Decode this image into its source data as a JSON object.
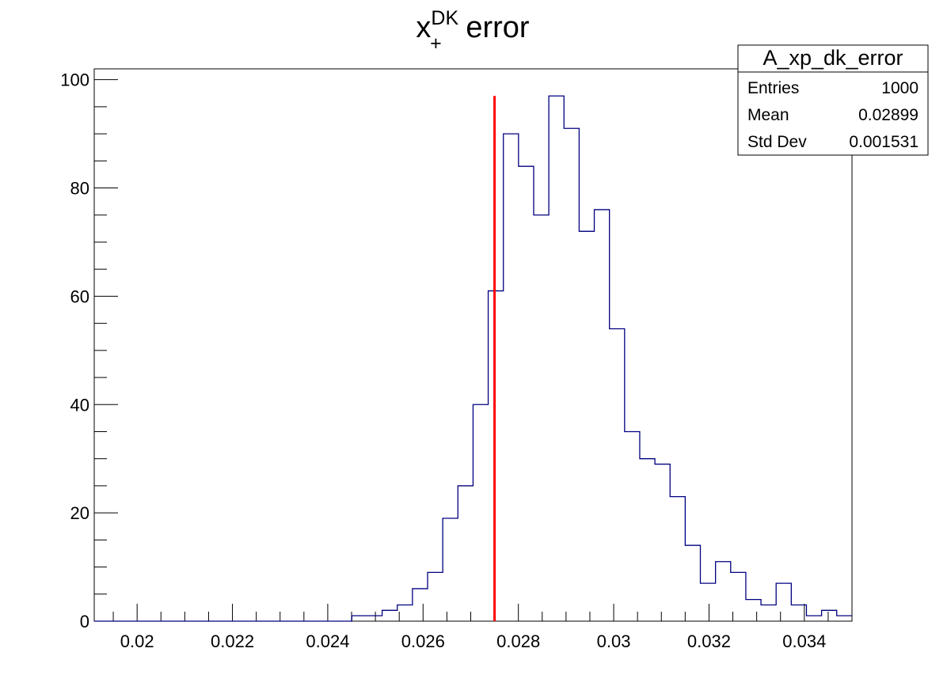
{
  "chart_data": {
    "type": "histogram",
    "title": {
      "base": "x",
      "superscript": "DK",
      "subscript": "+",
      "rest": " error"
    },
    "xlabel": "",
    "ylabel": "",
    "xlim": [
      0.0191,
      0.035
    ],
    "ylim": [
      0,
      102
    ],
    "x_ticks": [
      0.02,
      0.022,
      0.024,
      0.026,
      0.028,
      0.03,
      0.032,
      0.034
    ],
    "x_tick_labels": [
      "0.02",
      "0.022",
      "0.024",
      "0.026",
      "0.028",
      "0.03",
      "0.032",
      "0.034"
    ],
    "y_ticks": [
      0,
      20,
      40,
      60,
      80,
      100
    ],
    "y_tick_labels": [
      "0",
      "20",
      "40",
      "60",
      "80",
      "100"
    ],
    "bin_width": 0.00031796,
    "bins_x_start": 0.0191,
    "bin_counts": [
      0,
      0,
      0,
      0,
      0,
      0,
      0,
      0,
      0,
      0,
      0,
      0,
      0,
      0,
      0,
      0,
      0,
      1,
      1,
      2,
      3,
      6,
      9,
      19,
      25,
      40,
      61,
      90,
      84,
      75,
      97,
      91,
      72,
      76,
      54,
      35,
      30,
      29,
      23,
      14,
      7,
      11,
      9,
      4,
      3,
      7,
      3,
      1,
      2,
      1
    ],
    "marker_line": {
      "x": 0.0275,
      "y_top": 97,
      "color": "#ff0000"
    },
    "histogram_color": "#000080",
    "grid": false,
    "legend": "none"
  },
  "stats_box": {
    "name": "A_xp_dk_error",
    "rows": [
      {
        "label": "Entries",
        "value": "1000"
      },
      {
        "label": "Mean",
        "value": "0.02899"
      },
      {
        "label": "Std Dev",
        "value": "0.001531"
      }
    ]
  }
}
